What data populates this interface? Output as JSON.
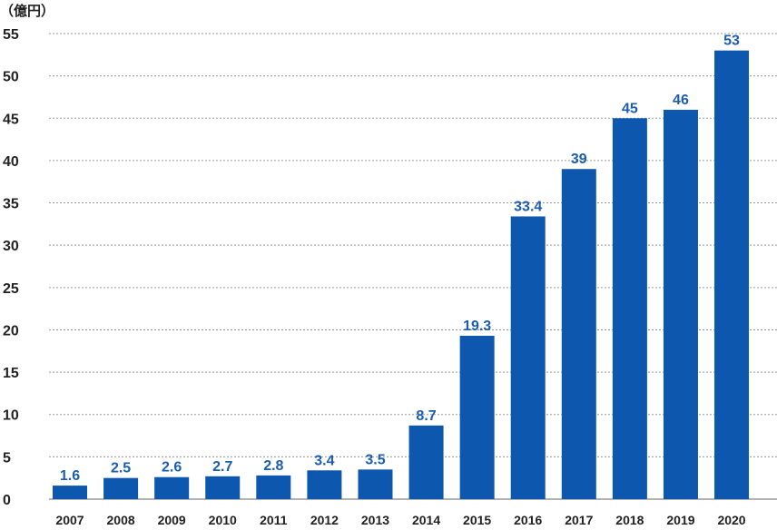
{
  "chart_data": {
    "type": "bar",
    "unit_label": "（億円）",
    "categories": [
      "2007",
      "2008",
      "2009",
      "2010",
      "2011",
      "2012",
      "2013",
      "2014",
      "2015",
      "2016",
      "2017",
      "2018",
      "2019",
      "2020"
    ],
    "values": [
      1.6,
      2.5,
      2.6,
      2.7,
      2.8,
      3.4,
      3.5,
      8.7,
      19.3,
      33.4,
      39,
      45,
      46,
      53
    ],
    "value_labels": [
      "1.6",
      "2.5",
      "2.6",
      "2.7",
      "2.8",
      "3.4",
      "3.5",
      "8.7",
      "19.3",
      "33.4",
      "39",
      "45",
      "46",
      "53"
    ],
    "yticks": [
      "0",
      "5",
      "10",
      "15",
      "20",
      "25",
      "30",
      "35",
      "40",
      "45",
      "50",
      "55"
    ],
    "ylim": [
      0,
      55
    ],
    "grid": true,
    "bar_color": "#0d57ae",
    "label_color": "#1b5db0"
  }
}
